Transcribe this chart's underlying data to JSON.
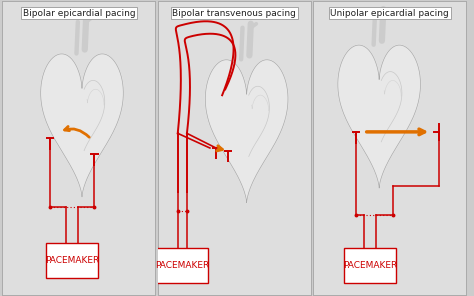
{
  "panels": [
    {
      "title": "Bipolar epicardial pacing",
      "type": "bipolar_epicardial"
    },
    {
      "title": "Bipolar transvenous pacing",
      "type": "bipolar_transvenous"
    },
    {
      "title": "Unipolar epicardial pacing",
      "type": "unipolar_epicardial"
    }
  ],
  "bg_color": "#cccccc",
  "panel_bg": "#dedede",
  "red_color": "#cc0000",
  "orange_color": "#e07000",
  "title_fontsize": 6.5,
  "label_fontsize": 6.5,
  "figsize": [
    4.74,
    2.96
  ],
  "dpi": 100
}
